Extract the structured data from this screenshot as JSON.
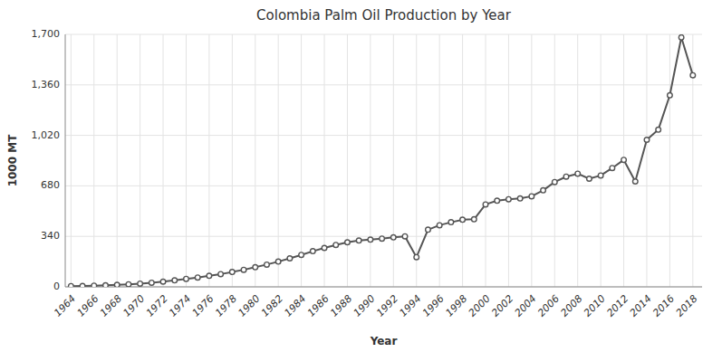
{
  "chart_data": {
    "type": "line",
    "title": "Colombia Palm Oil Production by Year",
    "xlabel": "Year",
    "ylabel": "1000 MT",
    "x": [
      1964,
      1965,
      1966,
      1967,
      1968,
      1969,
      1970,
      1971,
      1972,
      1973,
      1974,
      1975,
      1976,
      1977,
      1978,
      1979,
      1980,
      1981,
      1982,
      1983,
      1984,
      1985,
      1986,
      1987,
      1988,
      1989,
      1990,
      1991,
      1992,
      1993,
      1994,
      1995,
      1996,
      1997,
      1998,
      1999,
      2000,
      2001,
      2002,
      2003,
      2004,
      2005,
      2006,
      2007,
      2008,
      2009,
      2010,
      2011,
      2012,
      2013,
      2014,
      2015,
      2016,
      2017,
      2018
    ],
    "values": [
      5,
      6,
      8,
      10,
      13,
      17,
      22,
      28,
      35,
      44,
      54,
      63,
      74,
      86,
      100,
      115,
      132,
      150,
      170,
      192,
      215,
      240,
      262,
      282,
      300,
      312,
      318,
      325,
      333,
      340,
      200,
      385,
      415,
      435,
      452,
      455,
      555,
      580,
      590,
      595,
      610,
      650,
      706,
      742,
      762,
      728,
      750,
      800,
      855,
      710,
      990,
      1058,
      1290,
      1680,
      1425
    ],
    "color": "#555555",
    "marker": "circle",
    "xlim": [
      1963.5,
      2018.8
    ],
    "xticks": [
      1964,
      1966,
      1968,
      1970,
      1972,
      1974,
      1976,
      1978,
      1980,
      1982,
      1984,
      1986,
      1988,
      1990,
      1992,
      1994,
      1996,
      1998,
      2000,
      2002,
      2004,
      2006,
      2008,
      2010,
      2012,
      2014,
      2016,
      2018
    ],
    "ylim": [
      0,
      1700
    ],
    "yticks": [
      0,
      340,
      680,
      {
        "value": 1020,
        "label": "1,020"
      },
      {
        "value": 1360,
        "label": "1,360"
      },
      {
        "value": 1700,
        "label": "1,700"
      }
    ],
    "grid": true
  }
}
